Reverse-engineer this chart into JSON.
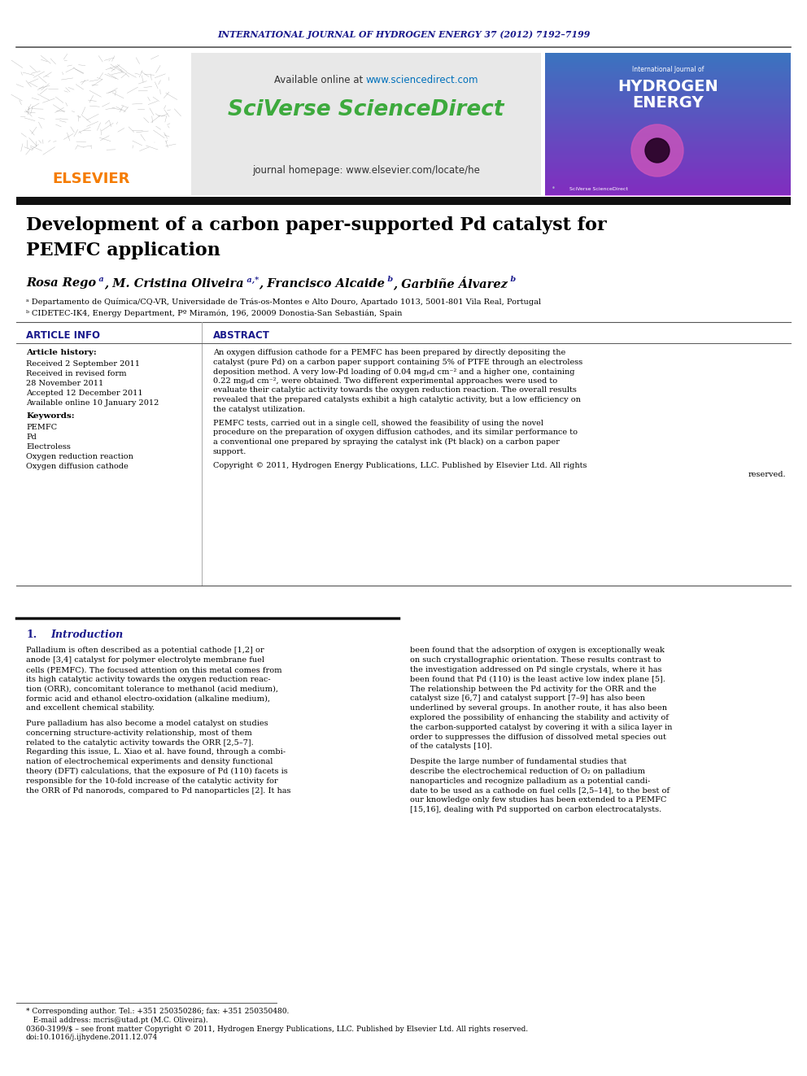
{
  "journal_header": "INTERNATIONAL JOURNAL OF HYDROGEN ENERGY 37 (2012) 7192–7199",
  "journal_header_color": "#1a1a8c",
  "sciverse_text": "SciVerse ScienceDirect",
  "sciverse_color": "#3daa3d",
  "elsevier_color": "#f57c00",
  "header_bg_color": "#e8e8e8",
  "dark_bar_color": "#111111",
  "article_info_color": "#1a1a8c",
  "intro_title_color": "#1a1a8c",
  "cover_bg_color": "#2a3580",
  "paper_title_line1": "Development of a carbon paper-supported Pd catalyst for",
  "paper_title_line2": "PEMFC application",
  "affiliation_a": "ᵃ Departamento de Química/CQ-VR, Universidade de Trás-os-Montes e Alto Douro, Apartado 1013, 5001-801 Vila Real, Portugal",
  "affiliation_b": "ᵇ CIDETEC-IK4, Energy Department, Pº Miramón, 196, 20009 Donostia-San Sebastián, Spain",
  "keywords": [
    "PEMFC",
    "Pd",
    "Electroless",
    "Oxygen reduction reaction",
    "Oxygen diffusion cathode"
  ],
  "abstract_lines": [
    "An oxygen diffusion cathode for a PEMFC has been prepared by directly depositing the",
    "catalyst (pure Pd) on a carbon paper support containing 5% of PTFE through an electroless",
    "deposition method. A very low-Pd loading of 0.04 mgₚd cm⁻² and a higher one, containing",
    "0.22 mgₚd cm⁻², were obtained. Two different experimental approaches were used to",
    "evaluate their catalytic activity towards the oxygen reduction reaction. The overall results",
    "revealed that the prepared catalysts exhibit a high catalytic activity, but a low efficiency on",
    "the catalyst utilization.",
    "",
    "PEMFC tests, carried out in a single cell, showed the feasibility of using the novel",
    "procedure on the preparation of oxygen diffusion cathodes, and its similar performance to",
    "a conventional one prepared by spraying the catalyst ink (Pt black) on a carbon paper",
    "support.",
    "",
    "Copyright © 2011, Hydrogen Energy Publications, LLC. Published by Elsevier Ltd. All rights",
    "                                                                                              reserved."
  ],
  "intro_col1_lines": [
    "Palladium is often described as a potential cathode [1,2] or",
    "anode [3,4] catalyst for polymer electrolyte membrane fuel",
    "cells (PEMFC). The focused attention on this metal comes from",
    "its high catalytic activity towards the oxygen reduction reac-",
    "tion (ORR), concomitant tolerance to methanol (acid medium),",
    "formic acid and ethanol electro-oxidation (alkaline medium),",
    "and excellent chemical stability.",
    "",
    "Pure palladium has also become a model catalyst on studies",
    "concerning structure-activity relationship, most of them",
    "related to the catalytic activity towards the ORR [2,5–7].",
    "Regarding this issue, L. Xiao et al. have found, through a combi-",
    "nation of electrochemical experiments and density functional",
    "theory (DFT) calculations, that the exposure of Pd (110) facets is",
    "responsible for the 10-fold increase of the catalytic activity for",
    "the ORR of Pd nanorods, compared to Pd nanoparticles [2]. It has"
  ],
  "intro_col2_lines": [
    "been found that the adsorption of oxygen is exceptionally weak",
    "on such crystallographic orientation. These results contrast to",
    "the investigation addressed on Pd single crystals, where it has",
    "been found that Pd (110) is the least active low index plane [5].",
    "The relationship between the Pd activity for the ORR and the",
    "catalyst size [6,7] and catalyst support [7–9] has also been",
    "underlined by several groups. In another route, it has also been",
    "explored the possibility of enhancing the stability and activity of",
    "the carbon-supported catalyst by covering it with a silica layer in",
    "order to suppresses the diffusion of dissolved metal species out",
    "of the catalysts [10].",
    "",
    "Despite the large number of fundamental studies that",
    "describe the electrochemical reduction of O₂ on palladium",
    "nanoparticles and recognize palladium as a potential candi-",
    "date to be used as a cathode on fuel cells [2,5–14], to the best of",
    "our knowledge only few studies has been extended to a PEMFC",
    "[15,16], dealing with Pd supported on carbon electrocatalysts."
  ],
  "footnote_lines": [
    "* Corresponding author. Tel.: +351 250350286; fax: +351 250350480.",
    "   E-mail address: mcris@utad.pt (M.C. Oliveira).",
    "0360-3199/$ – see front matter Copyright © 2011, Hydrogen Energy Publications, LLC. Published by Elsevier Ltd. All rights reserved.",
    "doi:10.1016/j.ijhydene.2011.12.074"
  ]
}
